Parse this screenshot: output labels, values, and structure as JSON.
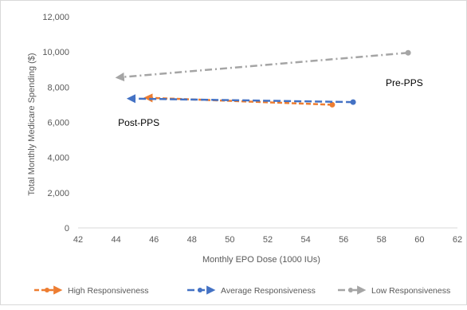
{
  "chart_data": {
    "type": "line",
    "title": "",
    "xlabel": "Monthly EPO Dose (1000 IUs)",
    "ylabel": "Total Monthly Medicare Spending ($)",
    "xlim": [
      42,
      62
    ],
    "ylim": [
      0,
      12000
    ],
    "x_ticks": [
      "42",
      "44",
      "46",
      "48",
      "50",
      "52",
      "54",
      "56",
      "58",
      "60",
      "62"
    ],
    "y_ticks": [
      "0",
      "2,000",
      "4,000",
      "6,000",
      "8,000",
      "10,000",
      "12,000"
    ],
    "grid": false,
    "legend_position": "bottom",
    "series": [
      {
        "name": "High Responsiveness",
        "color": "#ED7D31",
        "dash": "dashed",
        "points": [
          {
            "x": 55.4,
            "y": 7000
          },
          {
            "x": 45.6,
            "y": 7400
          }
        ]
      },
      {
        "name": "Average Responsiveness",
        "color": "#4472C4",
        "dash": "long-dash",
        "points": [
          {
            "x": 56.5,
            "y": 7150
          },
          {
            "x": 44.7,
            "y": 7350
          }
        ]
      },
      {
        "name": "Low Responsiveness",
        "color": "#A5A5A5",
        "dash": "dash-dot",
        "points": [
          {
            "x": 59.4,
            "y": 9950
          },
          {
            "x": 44.1,
            "y": 8550
          }
        ]
      }
    ],
    "annotations": [
      {
        "text": "Pre-PPS",
        "x": 59.2,
        "y": 8050
      },
      {
        "text": "Post-PPS",
        "x": 45.2,
        "y": 5800
      }
    ]
  }
}
